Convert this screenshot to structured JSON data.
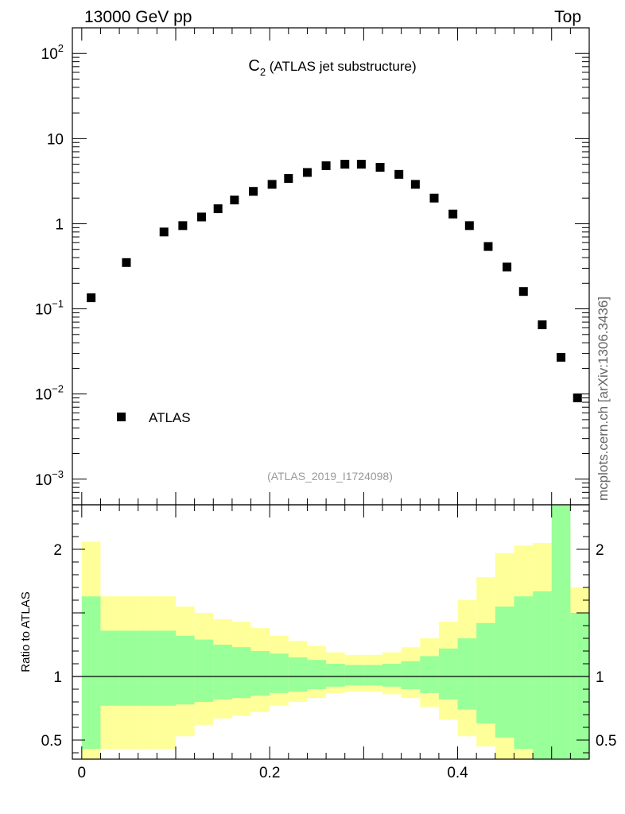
{
  "header": {
    "left": "13000 GeV pp",
    "right": "Top"
  },
  "side_label": "mcplots.cern.ch [arXiv:1306.3436]",
  "chart_data": [
    {
      "type": "scatter",
      "title": "C",
      "title_sub": "2",
      "title_rest": " (ATLAS jet substructure)",
      "analysis": "(ATLAS_2019_I1724098)",
      "yscale": "log",
      "ylim": [
        0.0005,
        200
      ],
      "xlim": [
        -0.01,
        0.54
      ],
      "ytick_labels": [
        {
          "value": 100,
          "base": "10",
          "exp": "2"
        },
        {
          "value": 10,
          "base": "10",
          "exp": ""
        },
        {
          "value": 1,
          "base": "1",
          "exp": ""
        },
        {
          "value": 0.1,
          "base": "10",
          "exp": "−1"
        },
        {
          "value": 0.01,
          "base": "10",
          "exp": "−2"
        },
        {
          "value": 0.001,
          "base": "10",
          "exp": "−3"
        }
      ],
      "legend": "top-left-bottom",
      "series": [
        {
          "name": "ATLAS",
          "color": "#000000",
          "x": [
            0.01,
            0.0475,
            0.0875,
            0.1075,
            0.1275,
            0.145,
            0.1625,
            0.1825,
            0.2025,
            0.22,
            0.24,
            0.26,
            0.28,
            0.2975,
            0.3175,
            0.3375,
            0.355,
            0.375,
            0.395,
            0.4125,
            0.4325,
            0.4525,
            0.47,
            0.49,
            0.51,
            0.5275
          ],
          "y": [
            0.135,
            0.35,
            0.8,
            0.95,
            1.2,
            1.5,
            1.9,
            2.4,
            2.9,
            3.4,
            4.0,
            4.8,
            5.0,
            5.0,
            4.6,
            3.8,
            2.9,
            2.0,
            1.3,
            0.95,
            0.54,
            0.31,
            0.16,
            0.065,
            0.027,
            0.009
          ]
        }
      ]
    },
    {
      "type": "area",
      "ylabel": "Ratio to ATLAS",
      "ylim": [
        0.35,
        2.35
      ],
      "xlim": [
        -0.01,
        0.54
      ],
      "y_ticks": [
        0.5,
        1,
        2
      ],
      "y_tick_labels": [
        "0.5",
        "1",
        "2"
      ],
      "x_ticks": [
        0,
        0.2,
        0.4
      ],
      "x_tick_labels": [
        "0",
        "0.2",
        "0.4"
      ],
      "reference_line": 1,
      "bin_edges": [
        0,
        0.02,
        0.04,
        0.06,
        0.08,
        0.1,
        0.12,
        0.14,
        0.16,
        0.18,
        0.2,
        0.22,
        0.24,
        0.26,
        0.28,
        0.3,
        0.32,
        0.34,
        0.36,
        0.38,
        0.4,
        0.42,
        0.44,
        0.46,
        0.48,
        0.5,
        0.52,
        0.54
      ],
      "bands": [
        {
          "name": "total uncertainty",
          "color": "#ffff99",
          "lo": [
            0.35,
            0.43,
            0.43,
            0.43,
            0.43,
            0.53,
            0.62,
            0.67,
            0.69,
            0.72,
            0.77,
            0.8,
            0.83,
            0.87,
            0.88,
            0.88,
            0.86,
            0.83,
            0.76,
            0.66,
            0.53,
            0.45,
            0.35,
            0.35,
            0.35,
            0.35,
            0.62
          ],
          "hi": [
            2.06,
            1.63,
            1.63,
            1.63,
            1.63,
            1.55,
            1.5,
            1.45,
            1.43,
            1.38,
            1.32,
            1.28,
            1.24,
            1.19,
            1.17,
            1.17,
            1.19,
            1.23,
            1.3,
            1.43,
            1.6,
            1.78,
            1.97,
            2.03,
            2.05,
            2.19,
            1.7
          ]
        },
        {
          "name": "statistical uncertainty",
          "color": "#99ff99",
          "lo": [
            0.43,
            0.77,
            0.77,
            0.77,
            0.77,
            0.78,
            0.8,
            0.82,
            0.83,
            0.85,
            0.87,
            0.88,
            0.9,
            0.92,
            0.93,
            0.93,
            0.92,
            0.9,
            0.87,
            0.82,
            0.74,
            0.63,
            0.52,
            0.43,
            0.35,
            0.35,
            0.35
          ],
          "hi": [
            1.63,
            1.36,
            1.36,
            1.36,
            1.36,
            1.32,
            1.29,
            1.25,
            1.23,
            1.2,
            1.18,
            1.15,
            1.13,
            1.1,
            1.09,
            1.09,
            1.1,
            1.12,
            1.16,
            1.22,
            1.3,
            1.42,
            1.55,
            1.63,
            1.67,
            2.35,
            1.5
          ]
        }
      ]
    }
  ]
}
